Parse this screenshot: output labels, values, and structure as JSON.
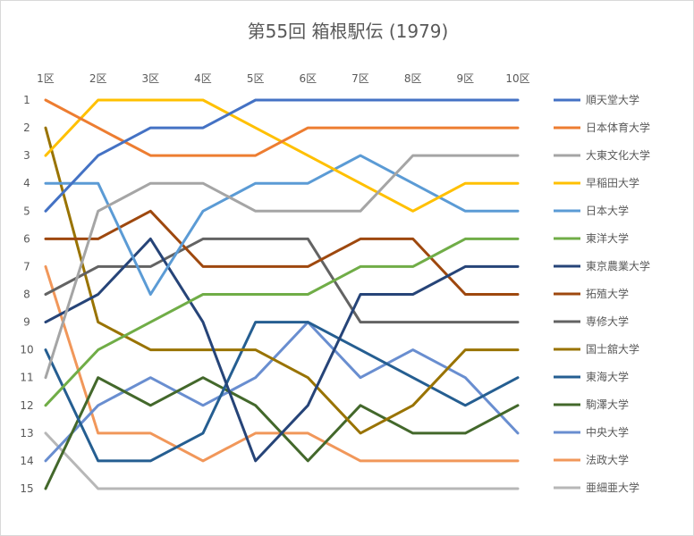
{
  "chart_data": {
    "type": "line",
    "title": "第55回 箱根駅伝 (1979)",
    "categories": [
      "1区",
      "2区",
      "3区",
      "4区",
      "5区",
      "6区",
      "7区",
      "8区",
      "9区",
      "10区"
    ],
    "ylim": [
      1,
      15
    ],
    "y_inverted": true,
    "y_ticks": [
      1,
      2,
      3,
      4,
      5,
      6,
      7,
      8,
      9,
      10,
      11,
      12,
      13,
      14,
      15
    ],
    "grid": false,
    "legend_position": "right",
    "series": [
      {
        "name": "順天堂大学",
        "color": "#4472C4",
        "values": [
          5,
          3,
          2,
          2,
          1,
          1,
          1,
          1,
          1,
          1
        ]
      },
      {
        "name": "日本体育大学",
        "color": "#ED7D31",
        "values": [
          1,
          2,
          3,
          3,
          3,
          2,
          2,
          2,
          2,
          2
        ]
      },
      {
        "name": "大東文化大学",
        "color": "#A5A5A5",
        "values": [
          11,
          5,
          4,
          4,
          5,
          5,
          5,
          3,
          3,
          3
        ]
      },
      {
        "name": "早稲田大学",
        "color": "#FFC000",
        "values": [
          3,
          1,
          1,
          1,
          2,
          3,
          4,
          5,
          4,
          4
        ]
      },
      {
        "name": "日本大学",
        "color": "#5B9BD5",
        "values": [
          4,
          4,
          8,
          5,
          4,
          4,
          3,
          4,
          5,
          5
        ]
      },
      {
        "name": "東洋大学",
        "color": "#70AD47",
        "values": [
          12,
          10,
          9,
          8,
          8,
          8,
          7,
          7,
          6,
          6
        ]
      },
      {
        "name": "東京農業大学",
        "color": "#264478",
        "values": [
          9,
          8,
          6,
          9,
          14,
          12,
          8,
          8,
          7,
          7
        ]
      },
      {
        "name": "拓殖大学",
        "color": "#9E480E",
        "values": [
          6,
          6,
          5,
          7,
          7,
          7,
          6,
          6,
          8,
          8
        ]
      },
      {
        "name": "専修大学",
        "color": "#636363",
        "values": [
          8,
          7,
          7,
          6,
          6,
          6,
          9,
          9,
          9,
          9
        ]
      },
      {
        "name": "国士舘大学",
        "color": "#997300",
        "values": [
          2,
          9,
          10,
          10,
          10,
          11,
          13,
          12,
          10,
          10
        ]
      },
      {
        "name": "東海大学",
        "color": "#255E91",
        "values": [
          10,
          14,
          14,
          13,
          9,
          9,
          10,
          11,
          12,
          11
        ]
      },
      {
        "name": "駒澤大学",
        "color": "#43682B",
        "values": [
          15,
          11,
          12,
          11,
          12,
          14,
          12,
          13,
          13,
          12
        ]
      },
      {
        "name": "中央大学",
        "color": "#698ED0",
        "values": [
          14,
          12,
          11,
          12,
          11,
          9,
          11,
          10,
          11,
          13
        ]
      },
      {
        "name": "法政大学",
        "color": "#F1975A",
        "values": [
          7,
          13,
          13,
          14,
          13,
          13,
          14,
          14,
          14,
          14
        ]
      },
      {
        "name": "亜細亜大学",
        "color": "#B7B7B7",
        "values": [
          13,
          15,
          15,
          15,
          15,
          15,
          15,
          15,
          15,
          15
        ]
      }
    ]
  }
}
